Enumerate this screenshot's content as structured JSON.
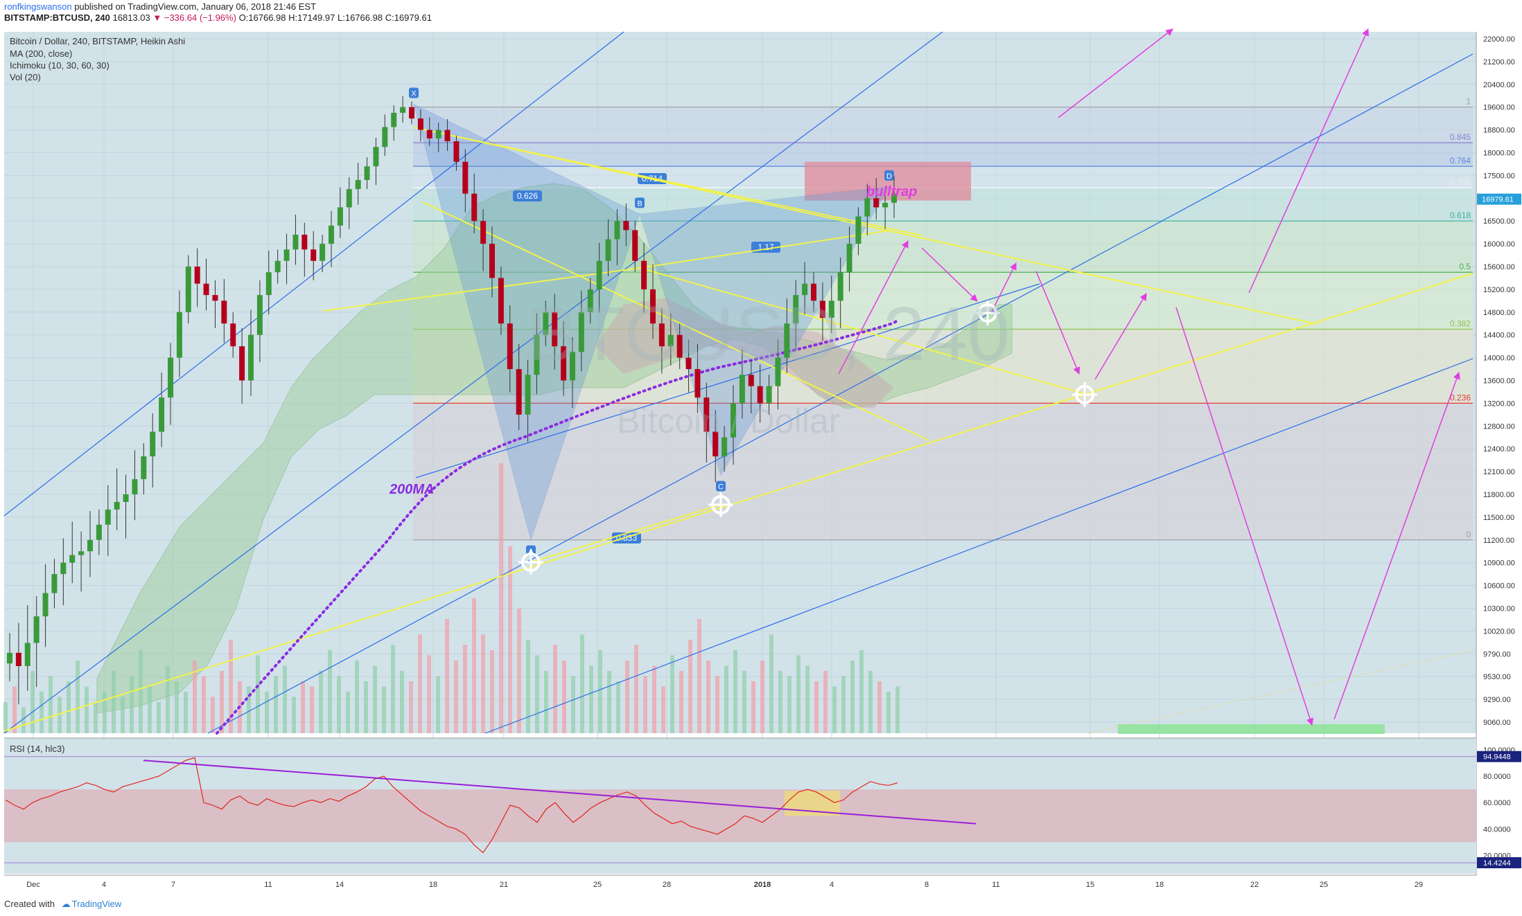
{
  "header": {
    "author": "ronfkingswanson",
    "published": "published on TradingView.com, January 06, 2018 21:46 EST",
    "symbol": "BITSTAMP:BTCUSD, 240",
    "change": "▼ −336.64 (−1.96%)",
    "last": "16813.03",
    "ohlc": {
      "o": "O:16766.98",
      "h": "H:17149.97",
      "l": "L:16766.98",
      "c": "C:16979.61"
    }
  },
  "legend": {
    "title": "Bitcoin / Dollar, 240, BITSTAMP, Heikin Ashi",
    "ma": "MA (200, close)",
    "ichimoku": "Ichimoku (10, 30, 60, 30)",
    "vol": "Vol (20)",
    "rsi": "RSI (14, hlc3)"
  },
  "watermark": {
    "big": "BTCUSD, 240",
    "small": "Bitcoin / Dollar"
  },
  "footer": {
    "created": "Created with",
    "brand": "TradingView"
  },
  "colors": {
    "up": "#3a9a3a",
    "down": "#b5001c",
    "magenta": "#e13ee1",
    "yellow": "#f2f24a",
    "blue": "#2a6ee8",
    "purple": "#8a2be2",
    "rsi": "#e0261c"
  },
  "chart_data": {
    "type": "candlestick",
    "price_axis": {
      "labels": [
        "22000.00",
        "21200.00",
        "20400.00",
        "19600.00",
        "18800.00",
        "18000.00",
        "17500.00",
        "17000.00",
        "16500.00",
        "16000.00",
        "15600.00",
        "15200.00",
        "14800.00",
        "14400.00",
        "14000.00",
        "13600.00",
        "13200.00",
        "12800.00",
        "12400.00",
        "12100.00",
        "11800.00",
        "11500.00",
        "11200.00",
        "10900.00",
        "10600.00",
        "10300.00",
        "10020.00",
        "9790.00",
        "9530.00",
        "9290.00",
        "9060.00"
      ],
      "current": "16979.61",
      "range": [
        9060,
        22000
      ]
    },
    "time_axis": {
      "labels": [
        "Dec",
        "4",
        "7",
        "11",
        "14",
        "18",
        "21",
        "25",
        "28",
        "2018",
        "4",
        "8",
        "11",
        "15",
        "18",
        "22",
        "25",
        "29"
      ]
    },
    "fib": [
      {
        "level": "1",
        "price": 19600
      },
      {
        "level": "0.845",
        "price": 18350
      },
      {
        "level": "0.764",
        "price": 17700
      },
      {
        "level": "0.705",
        "price": 17230
      },
      {
        "level": "0.618",
        "price": 16500
      },
      {
        "level": "0.5",
        "price": 15500
      },
      {
        "level": "0.382",
        "price": 14500
      },
      {
        "level": "0.236",
        "price": 13200
      },
      {
        "level": "0",
        "price": 11200
      }
    ],
    "pattern_points": [
      {
        "label": "X",
        "price": 19700
      },
      {
        "label": "A",
        "price": 11200
      },
      {
        "label": "B",
        "price": 16650
      },
      {
        "label": "C",
        "price": 12050
      },
      {
        "label": "D",
        "price": 17250
      }
    ],
    "pattern_ratios": [
      "0.626",
      "0.714",
      "1.17",
      "0.833"
    ],
    "annotations": [
      "bulltrap",
      "200MA"
    ],
    "candles": [
      9800,
      9650,
      9900,
      10200,
      10500,
      10750,
      10900,
      11000,
      11050,
      11200,
      11400,
      11600,
      11700,
      11800,
      12000,
      12300,
      12700,
      13300,
      14000,
      14800,
      15600,
      15300,
      15100,
      15000,
      14600,
      14200,
      13600,
      14400,
      15100,
      15500,
      15700,
      15900,
      16200,
      15900,
      15700,
      16000,
      16400,
      16800,
      17200,
      17400,
      17700,
      18200,
      18900,
      19400,
      19600,
      19200,
      18800,
      18500,
      18800,
      18400,
      17800,
      17100,
      16500,
      16000,
      15400,
      14600,
      13800,
      13000,
      13700,
      14400,
      14800,
      14200,
      13600,
      14100,
      14800,
      15200,
      15700,
      16100,
      16500,
      16300,
      15700,
      15200,
      14600,
      14200,
      14400,
      14000,
      13800,
      13300,
      12700,
      12300,
      12600,
      13200,
      13700,
      13500,
      13200,
      13500,
      14000,
      14600,
      15100,
      15300,
      15000,
      14700,
      15000,
      15500,
      16000,
      16600,
      17000,
      16800,
      16900,
      17100
    ],
    "volume_series": [
      30,
      45,
      25,
      60,
      40,
      55,
      35,
      50,
      70,
      45,
      30,
      40,
      60,
      35,
      55,
      80,
      45,
      30,
      65,
      50,
      40,
      70,
      55,
      35,
      60,
      90,
      50,
      45,
      75,
      40,
      55,
      65,
      35,
      50,
      45,
      60,
      80,
      55,
      40,
      70,
      50,
      65,
      45,
      85,
      60,
      50,
      95,
      75,
      55,
      110,
      70,
      85,
      130,
      95,
      80,
      260,
      180,
      120,
      90,
      75,
      60,
      85,
      70,
      55,
      95,
      65,
      80,
      60,
      50,
      70,
      85,
      55,
      65,
      45,
      75,
      60,
      90,
      110,
      70,
      55,
      65,
      80,
      60,
      50,
      70,
      95,
      60,
      55,
      75,
      65,
      50,
      60,
      45,
      55,
      70,
      80,
      60,
      50,
      40,
      45
    ],
    "rsi": {
      "labels": [
        "100.0000",
        "80.0000",
        "60.0000",
        "40.0000",
        "20.0000"
      ],
      "current_high": "94.9448",
      "current_low": "14.4244",
      "values": [
        62,
        58,
        55,
        60,
        63,
        65,
        68,
        70,
        72,
        75,
        73,
        70,
        68,
        72,
        74,
        76,
        78,
        80,
        84,
        88,
        92,
        94,
        60,
        58,
        55,
        62,
        65,
        60,
        58,
        63,
        60,
        58,
        57,
        60,
        62,
        60,
        63,
        61,
        65,
        68,
        72,
        78,
        80,
        72,
        66,
        60,
        54,
        50,
        46,
        42,
        40,
        36,
        28,
        22,
        32,
        45,
        58,
        56,
        50,
        45,
        55,
        60,
        52,
        45,
        50,
        56,
        60,
        63,
        66,
        68,
        65,
        58,
        52,
        48,
        44,
        46,
        42,
        40,
        38,
        36,
        40,
        44,
        50,
        48,
        45,
        50,
        55,
        62,
        68,
        70,
        68,
        64,
        60,
        62,
        68,
        72,
        76,
        74,
        73,
        75
      ]
    }
  }
}
